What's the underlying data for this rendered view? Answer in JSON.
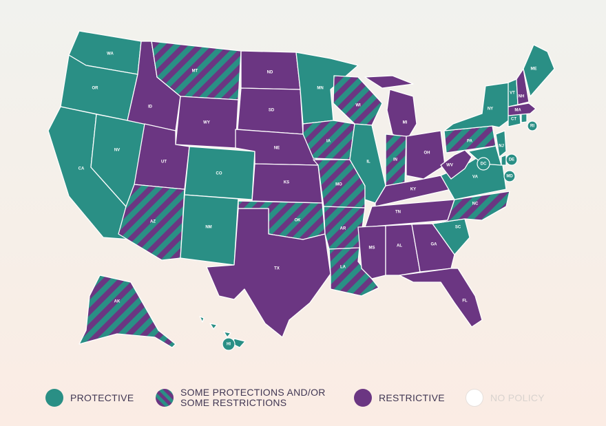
{
  "colors": {
    "protective": "#2a8f85",
    "restrictive": "#6b3682",
    "no_policy": "#ffffff",
    "outline": "#ffffff"
  },
  "legend": [
    {
      "key": "protective",
      "label": "PROTECTIVE"
    },
    {
      "key": "mixed",
      "label": "SOME PROTECTIONS AND/OR SOME RESTRICTIONS"
    },
    {
      "key": "restrictive",
      "label": "RESTRICTIVE"
    },
    {
      "key": "no_policy",
      "label": "NO POLICY"
    }
  ],
  "states": [
    {
      "abbr": "WA",
      "policy": "protective"
    },
    {
      "abbr": "OR",
      "policy": "protective"
    },
    {
      "abbr": "CA",
      "policy": "protective"
    },
    {
      "abbr": "NV",
      "policy": "protective"
    },
    {
      "abbr": "ID",
      "policy": "restrictive"
    },
    {
      "abbr": "MT",
      "policy": "mixed"
    },
    {
      "abbr": "WY",
      "policy": "restrictive"
    },
    {
      "abbr": "UT",
      "policy": "restrictive"
    },
    {
      "abbr": "CO",
      "policy": "protective"
    },
    {
      "abbr": "AZ",
      "policy": "mixed"
    },
    {
      "abbr": "NM",
      "policy": "protective"
    },
    {
      "abbr": "ND",
      "policy": "restrictive"
    },
    {
      "abbr": "SD",
      "policy": "restrictive"
    },
    {
      "abbr": "NE",
      "policy": "restrictive"
    },
    {
      "abbr": "KS",
      "policy": "restrictive"
    },
    {
      "abbr": "OK",
      "policy": "mixed"
    },
    {
      "abbr": "TX",
      "policy": "restrictive"
    },
    {
      "abbr": "MN",
      "policy": "protective"
    },
    {
      "abbr": "IA",
      "policy": "mixed"
    },
    {
      "abbr": "MO",
      "policy": "mixed"
    },
    {
      "abbr": "AR",
      "policy": "mixed"
    },
    {
      "abbr": "LA",
      "policy": "mixed"
    },
    {
      "abbr": "WI",
      "policy": "mixed"
    },
    {
      "abbr": "IL",
      "policy": "protective"
    },
    {
      "abbr": "MI",
      "policy": "restrictive"
    },
    {
      "abbr": "IN",
      "policy": "mixed"
    },
    {
      "abbr": "OH",
      "policy": "restrictive"
    },
    {
      "abbr": "KY",
      "policy": "restrictive"
    },
    {
      "abbr": "TN",
      "policy": "restrictive"
    },
    {
      "abbr": "MS",
      "policy": "restrictive"
    },
    {
      "abbr": "AL",
      "policy": "restrictive"
    },
    {
      "abbr": "GA",
      "policy": "restrictive"
    },
    {
      "abbr": "FL",
      "policy": "restrictive"
    },
    {
      "abbr": "SC",
      "policy": "protective"
    },
    {
      "abbr": "NC",
      "policy": "mixed"
    },
    {
      "abbr": "VA",
      "policy": "protective"
    },
    {
      "abbr": "WV",
      "policy": "restrictive"
    },
    {
      "abbr": "PA",
      "policy": "mixed"
    },
    {
      "abbr": "NY",
      "policy": "protective"
    },
    {
      "abbr": "NJ",
      "policy": "protective"
    },
    {
      "abbr": "DE",
      "policy": "protective"
    },
    {
      "abbr": "MD",
      "policy": "protective"
    },
    {
      "abbr": "DC",
      "policy": "protective"
    },
    {
      "abbr": "CT",
      "policy": "protective"
    },
    {
      "abbr": "RI",
      "policy": "protective"
    },
    {
      "abbr": "MA",
      "policy": "restrictive"
    },
    {
      "abbr": "VT",
      "policy": "protective"
    },
    {
      "abbr": "NH",
      "policy": "restrictive"
    },
    {
      "abbr": "ME",
      "policy": "protective"
    },
    {
      "abbr": "AK",
      "policy": "mixed"
    },
    {
      "abbr": "HI",
      "policy": "protective"
    }
  ]
}
